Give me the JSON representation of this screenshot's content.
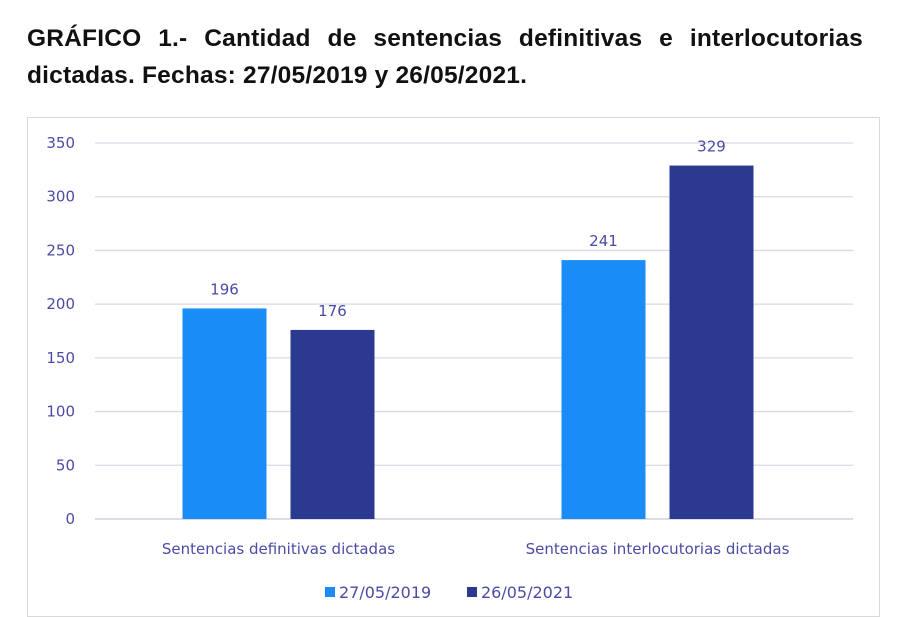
{
  "title": "GRÁFICO 1.- Cantidad de sentencias definitivas e interlocutorias dictadas. Fechas: 27/05/2019 y 26/05/2021.",
  "chart_data": {
    "type": "bar",
    "title": "GRÁFICO 1.- Cantidad de sentencias definitivas e interlocutorias dictadas. Fechas: 27/05/2019 y 26/05/2021.",
    "categories": [
      "Sentencias definitivas dictadas",
      "Sentencias interlocutorias dictadas"
    ],
    "series": [
      {
        "name": "27/05/2019",
        "color": "#1a8cf5",
        "values": [
          196,
          241
        ]
      },
      {
        "name": "26/05/2021",
        "color": "#2b3990",
        "values": [
          176,
          329
        ]
      }
    ],
    "yticks": [
      0,
      50,
      100,
      150,
      200,
      250,
      300,
      350
    ],
    "ylim": [
      0,
      350
    ],
    "xlabel": "",
    "ylabel": "",
    "grid": true,
    "legend": "bottom-center"
  }
}
